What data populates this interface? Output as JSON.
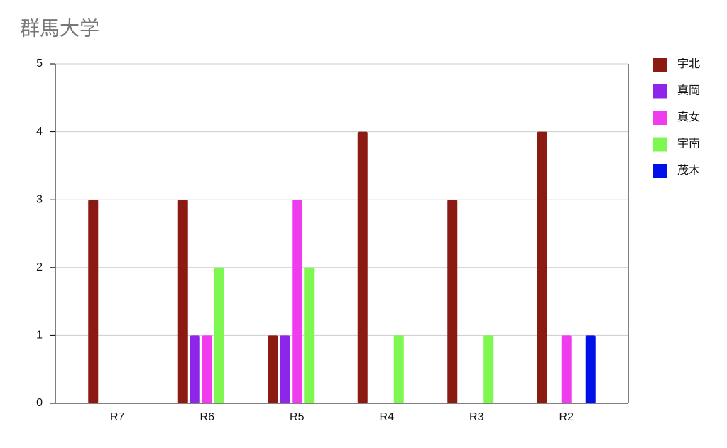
{
  "chart_data": {
    "type": "bar",
    "title": "群馬大学",
    "categories": [
      "R7",
      "R6",
      "R5",
      "R4",
      "R3",
      "R2"
    ],
    "series": [
      {
        "name": "宇北",
        "color": "#8b1a12",
        "values": [
          3,
          3,
          1,
          4,
          3,
          4
        ]
      },
      {
        "name": "真岡",
        "color": "#8e26ea",
        "values": [
          0,
          1,
          1,
          0,
          0,
          0
        ]
      },
      {
        "name": "真女",
        "color": "#ee3cee",
        "values": [
          0,
          1,
          3,
          0,
          0,
          1
        ]
      },
      {
        "name": "宇南",
        "color": "#7ef850",
        "values": [
          0,
          2,
          2,
          1,
          1,
          0
        ]
      },
      {
        "name": "茂木",
        "color": "#0010e8",
        "values": [
          0,
          0,
          0,
          0,
          0,
          1
        ]
      }
    ],
    "ylim": [
      0,
      5
    ],
    "yticks": [
      0,
      1,
      2,
      3,
      4,
      5
    ],
    "grid": true,
    "legend": "right"
  }
}
